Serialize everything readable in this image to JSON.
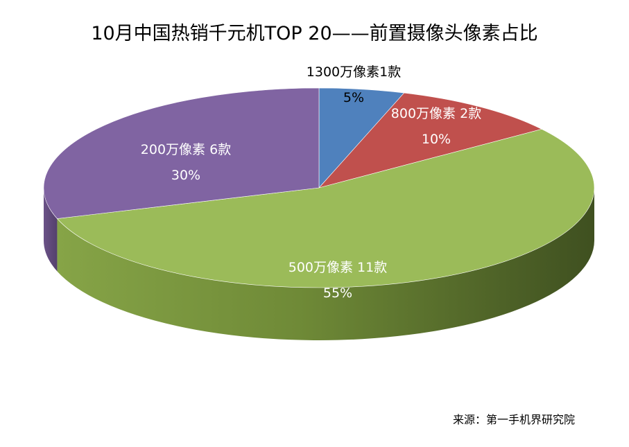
{
  "chart_data": {
    "type": "pie",
    "title": "10月中国热销千元机TOP 20——前置摄像头像素占比",
    "slices": [
      {
        "label": "1300万像素1款",
        "value": 5,
        "value_label": "5%",
        "color": "#4f81bd",
        "label_color": "#000000"
      },
      {
        "label": "800万像素 2款",
        "value": 10,
        "value_label": "10%",
        "color": "#c0504d",
        "label_color": "#ffffff"
      },
      {
        "label": "500万像素 11款",
        "value": 55,
        "value_label": "55%",
        "color": "#9bbb59",
        "label_color": "#ffffff"
      },
      {
        "label": "200万像素 6款",
        "value": 30,
        "value_label": "30%",
        "color": "#8064a2",
        "label_color": "#ffffff"
      }
    ],
    "style": "3d",
    "legend": "none"
  },
  "source": "来源：第一手机界研究院"
}
